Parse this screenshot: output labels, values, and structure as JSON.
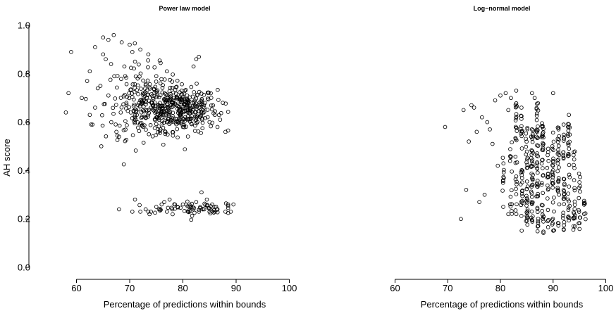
{
  "chart_data": [
    {
      "type": "scatter",
      "title": "Power law model",
      "xlabel": "Percentage of predictions within bounds",
      "ylabel": "AH score",
      "xlim": [
        60,
        100
      ],
      "ylim": [
        0.0,
        1.0
      ],
      "xticks": [
        "60",
        "70",
        "80",
        "90",
        "100"
      ],
      "yticks": [
        "0.0",
        "0.2",
        "0.4",
        "0.6",
        "0.8",
        "1.0"
      ],
      "grid": false,
      "points": [
        [
          58,
          0.64
        ],
        [
          58.5,
          0.72
        ],
        [
          59,
          0.89
        ],
        [
          61,
          0.7
        ],
        [
          62,
          0.77
        ],
        [
          62.5,
          0.81
        ],
        [
          62.5,
          0.63
        ],
        [
          63,
          0.59
        ],
        [
          63.5,
          0.91
        ],
        [
          63.5,
          0.66
        ],
        [
          64,
          0.74
        ],
        [
          64.5,
          0.75
        ],
        [
          65,
          0.95
        ],
        [
          65,
          0.88
        ],
        [
          65.5,
          0.86
        ],
        [
          66,
          0.94
        ],
        [
          66,
          0.71
        ],
        [
          66.5,
          0.84
        ],
        [
          67,
          0.96
        ],
        [
          67.5,
          0.56
        ],
        [
          68,
          0.54
        ],
        [
          68.5,
          0.93
        ],
        [
          69,
          0.83
        ],
        [
          70,
          0.92
        ],
        [
          70.5,
          0.89
        ],
        [
          71,
          0.85
        ],
        [
          71.5,
          0.78
        ],
        [
          72,
          0.9
        ],
        [
          72.5,
          0.72
        ],
        [
          73.5,
          0.88
        ],
        [
          74,
          0.66
        ],
        [
          75,
          0.79
        ],
        [
          76,
          0.64
        ],
        [
          77,
          0.81
        ],
        [
          78,
          0.61
        ],
        [
          79,
          0.6
        ],
        [
          80,
          0.58
        ],
        [
          81,
          0.64
        ],
        [
          82,
          0.83
        ],
        [
          82.5,
          0.86
        ],
        [
          83,
          0.87
        ],
        [
          84,
          0.66
        ],
        [
          85,
          0.6
        ],
        [
          86,
          0.63
        ],
        [
          86.5,
          0.58
        ],
        [
          87,
          0.61
        ],
        [
          87.5,
          0.68
        ],
        [
          88,
          0.56
        ],
        [
          68,
          0.24
        ],
        [
          70.5,
          0.23
        ],
        [
          71,
          0.28
        ],
        [
          72,
          0.23
        ],
        [
          73,
          0.24
        ],
        [
          73.5,
          0.23
        ],
        [
          74,
          0.23
        ],
        [
          75,
          0.25
        ],
        [
          75.5,
          0.24
        ],
        [
          76,
          0.26
        ],
        [
          76.5,
          0.27
        ],
        [
          77,
          0.23
        ],
        [
          77.5,
          0.28
        ],
        [
          78,
          0.24
        ],
        [
          78.5,
          0.26
        ],
        [
          79,
          0.25
        ],
        [
          80,
          0.26
        ],
        [
          81,
          0.23
        ],
        [
          81.5,
          0.25
        ],
        [
          82,
          0.24
        ],
        [
          82.5,
          0.27
        ],
        [
          83,
          0.23
        ],
        [
          83.5,
          0.31
        ],
        [
          84,
          0.24
        ],
        [
          84.5,
          0.28
        ],
        [
          85,
          0.23
        ],
        [
          85.5,
          0.26
        ],
        [
          86,
          0.23
        ],
        [
          86.5,
          0.24
        ],
        [
          88,
          0.23
        ],
        [
          88.5,
          0.26
        ],
        [
          89,
          0.23
        ],
        [
          89.5,
          0.26
        ]
      ],
      "clusters": [
        {
          "x_center": 80,
          "x_spread": 3.2,
          "y_center": 0.655,
          "y_spread": 0.045,
          "n": 260
        },
        {
          "x_center": 72.5,
          "x_spread": 3.5,
          "y_center": 0.68,
          "y_spread": 0.075,
          "n": 150
        },
        {
          "x_center": 76,
          "x_spread": 5,
          "y_center": 0.64,
          "y_spread": 0.055,
          "n": 110
        },
        {
          "x_center": 83,
          "x_spread": 2.5,
          "y_center": 0.245,
          "y_spread": 0.012,
          "n": 32
        },
        {
          "x_center": 79,
          "x_spread": 4.5,
          "y_center": 0.24,
          "y_spread": 0.012,
          "n": 22
        }
      ]
    },
    {
      "type": "scatter",
      "title": "Log−normal model",
      "xlabel": "Percentage of predictions within bounds",
      "ylabel": "",
      "xlim": [
        60,
        100
      ],
      "ylim": [
        0.0,
        1.0
      ],
      "xticks": [
        "60",
        "70",
        "80",
        "90",
        "100"
      ],
      "grid": false,
      "points": [
        [
          69.5,
          0.58
        ],
        [
          72.5,
          0.2
        ],
        [
          73,
          0.65
        ],
        [
          73.5,
          0.32
        ],
        [
          74,
          0.52
        ],
        [
          74.5,
          0.67
        ],
        [
          75,
          0.66
        ],
        [
          75.5,
          0.56
        ],
        [
          76,
          0.27
        ],
        [
          76.5,
          0.62
        ],
        [
          77,
          0.3
        ],
        [
          77.5,
          0.6
        ],
        [
          78,
          0.57
        ],
        [
          78.5,
          0.51
        ],
        [
          79,
          0.69
        ],
        [
          79.5,
          0.42
        ],
        [
          80,
          0.71
        ],
        [
          80.5,
          0.36
        ],
        [
          81,
          0.72
        ],
        [
          81.5,
          0.22
        ],
        [
          82,
          0.7
        ],
        [
          83,
          0.73
        ],
        [
          84,
          0.66
        ],
        [
          86,
          0.72
        ],
        [
          86.5,
          0.7
        ],
        [
          90,
          0.72
        ],
        [
          93,
          0.63
        ],
        [
          92,
          0.59
        ],
        [
          81.5,
          0.65
        ]
      ],
      "columns": [
        {
          "x": 80.5,
          "y_min": 0.24,
          "y_max": 0.46,
          "n": 10
        },
        {
          "x": 82,
          "y_min": 0.22,
          "y_max": 0.52,
          "n": 14
        },
        {
          "x": 83,
          "y_min": 0.18,
          "y_max": 0.68,
          "n": 28
        },
        {
          "x": 84,
          "y_min": 0.15,
          "y_max": 0.64,
          "n": 30
        },
        {
          "x": 85,
          "y_min": 0.15,
          "y_max": 0.62,
          "n": 34
        },
        {
          "x": 86,
          "y_min": 0.15,
          "y_max": 0.58,
          "n": 40
        },
        {
          "x": 87,
          "y_min": 0.14,
          "y_max": 0.7,
          "n": 46
        },
        {
          "x": 88,
          "y_min": 0.14,
          "y_max": 0.6,
          "n": 38
        },
        {
          "x": 89,
          "y_min": 0.15,
          "y_max": 0.5,
          "n": 18
        },
        {
          "x": 90,
          "y_min": 0.15,
          "y_max": 0.62,
          "n": 32
        },
        {
          "x": 91,
          "y_min": 0.15,
          "y_max": 0.58,
          "n": 30
        },
        {
          "x": 92,
          "y_min": 0.15,
          "y_max": 0.56,
          "n": 30
        },
        {
          "x": 93,
          "y_min": 0.15,
          "y_max": 0.62,
          "n": 32
        },
        {
          "x": 94,
          "y_min": 0.15,
          "y_max": 0.48,
          "n": 22
        },
        {
          "x": 95,
          "y_min": 0.15,
          "y_max": 0.4,
          "n": 14
        },
        {
          "x": 96,
          "y_min": 0.16,
          "y_max": 0.28,
          "n": 8
        }
      ]
    }
  ]
}
